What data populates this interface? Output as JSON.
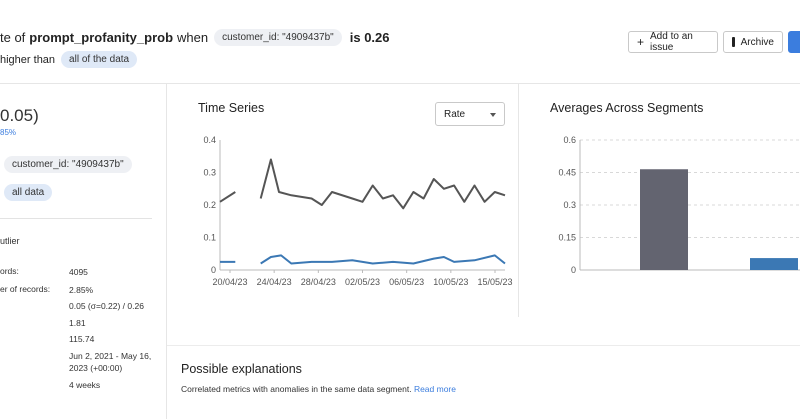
{
  "header": {
    "title_prefix": "te of",
    "metric": "prompt_profanity_prob",
    "when": "when",
    "segment_chip": "customer_id: \"4909437b\"",
    "is_value": "is 0.26",
    "sub_prefix": "higher than",
    "sub_chip": "all of the data",
    "add_issue_label": "Add to an issue",
    "archive_label": "Archive"
  },
  "left": {
    "big_value": "0.05)",
    "pct": "85%",
    "chip1": "customer_id: \"4909437b\"",
    "chip2": "all data",
    "outlier": "utlier",
    "stats": [
      {
        "label": "ords:",
        "value": "4095"
      },
      {
        "label": "er of records:",
        "value": "2.85%"
      },
      {
        "label": "",
        "value": "0.05 (σ=0.22) / 0.26"
      },
      {
        "label": "",
        "value": "1.81"
      },
      {
        "label": "",
        "value": "115.74"
      },
      {
        "label": "",
        "value": "Jun 2, 2021 - May 16, 2023 (+00:00)"
      },
      {
        "label": "",
        "value": "4 weeks"
      }
    ]
  },
  "time_series": {
    "title": "Time Series",
    "select_value": "Rate"
  },
  "segments": {
    "title": "Averages Across Segments"
  },
  "explanations": {
    "title": "Possible explanations",
    "text": "Correlated metrics with anomalies in the same data segment.",
    "link": "Read more"
  },
  "chart_data": [
    {
      "type": "line",
      "title": "Time Series",
      "x_ticks": [
        "20/04/23",
        "24/04/23",
        "28/04/23",
        "02/05/23",
        "06/05/23",
        "10/05/23",
        "15/05/23"
      ],
      "y_ticks": [
        "0",
        "0.1",
        "0.2",
        "0.3",
        "0.4"
      ],
      "ylim": [
        0,
        0.4
      ],
      "xlim": [
        0,
        28
      ],
      "series": [
        {
          "color": "#555555",
          "points": [
            [
              0,
              0.21
            ],
            [
              1.5,
              0.24
            ],
            [
              null,
              null
            ],
            [
              4,
              0.22
            ],
            [
              5,
              0.34
            ],
            [
              5.8,
              0.24
            ],
            [
              7,
              0.23
            ],
            [
              9,
              0.22
            ],
            [
              10,
              0.2
            ],
            [
              11,
              0.24
            ],
            [
              13,
              0.22
            ],
            [
              14,
              0.21
            ],
            [
              15,
              0.26
            ],
            [
              16,
              0.22
            ],
            [
              17,
              0.23
            ],
            [
              18,
              0.19
            ],
            [
              19,
              0.24
            ],
            [
              20,
              0.22
            ],
            [
              21,
              0.28
            ],
            [
              22,
              0.25
            ],
            [
              23,
              0.26
            ],
            [
              24,
              0.21
            ],
            [
              25,
              0.26
            ],
            [
              26,
              0.21
            ],
            [
              27,
              0.24
            ],
            [
              28,
              0.23
            ]
          ]
        },
        {
          "color": "#3b78b4",
          "points": [
            [
              0,
              0.025
            ],
            [
              1.5,
              0.025
            ],
            [
              null,
              null
            ],
            [
              4,
              0.02
            ],
            [
              5,
              0.04
            ],
            [
              6,
              0.045
            ],
            [
              7,
              0.02
            ],
            [
              9,
              0.025
            ],
            [
              11,
              0.025
            ],
            [
              13,
              0.03
            ],
            [
              15,
              0.02
            ],
            [
              17,
              0.025
            ],
            [
              19,
              0.02
            ],
            [
              21,
              0.035
            ],
            [
              22,
              0.04
            ],
            [
              23,
              0.025
            ],
            [
              25,
              0.03
            ],
            [
              27,
              0.045
            ],
            [
              28,
              0.02
            ]
          ]
        }
      ]
    },
    {
      "type": "bar",
      "title": "Averages Across Segments",
      "y_ticks": [
        "0",
        "0.15",
        "0.3",
        "0.45",
        "0.6"
      ],
      "ylim": [
        0,
        0.6
      ],
      "values": [
        0.465,
        0.055
      ],
      "colors": [
        "#636470",
        "#3b78b4"
      ]
    }
  ]
}
